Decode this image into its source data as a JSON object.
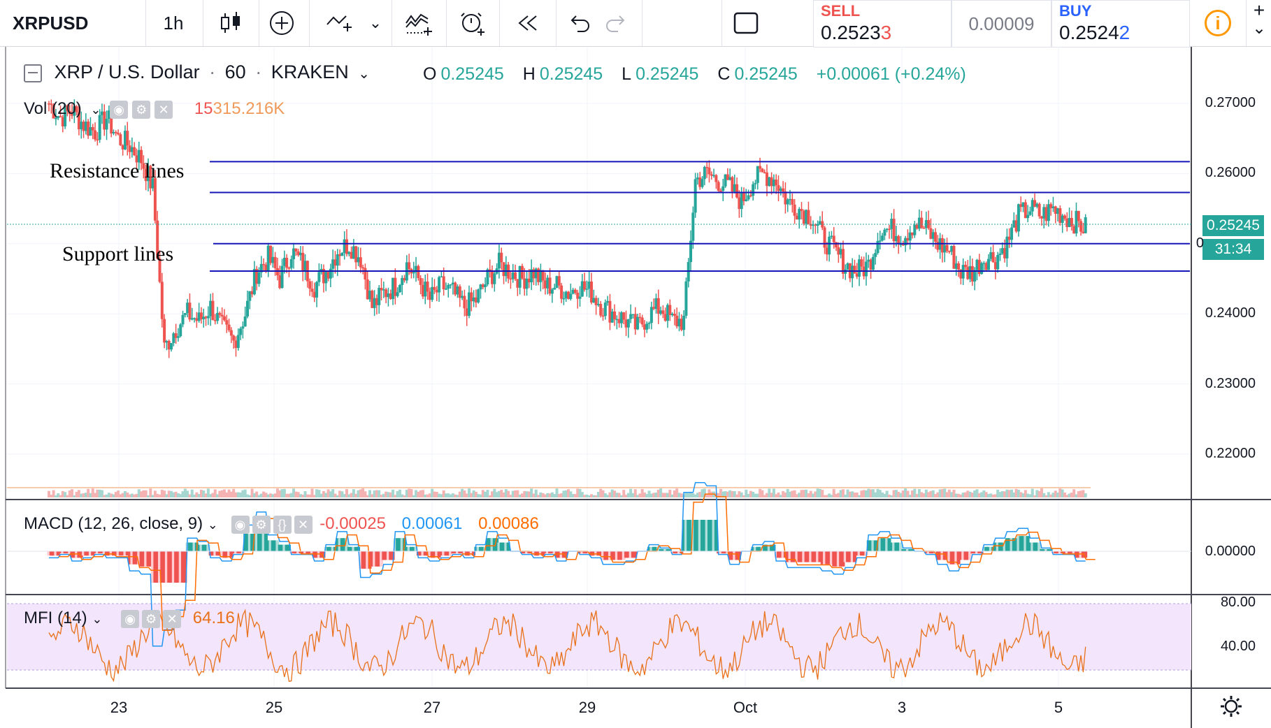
{
  "toolbar": {
    "symbol": "XRPUSD",
    "interval": "1h"
  },
  "trade": {
    "sell_label": "SELL",
    "sell_price_main": "0.2523",
    "sell_price_last": "3",
    "spread": "0.00009",
    "buy_label": "BUY",
    "buy_price_main": "0.2524",
    "buy_price_last": "2",
    "info_icon": "i",
    "plus": "+",
    "chevron": "⌄"
  },
  "main_legend": {
    "title": "XRP / U.S. Dollar",
    "interval": "60",
    "exchange": "KRAKEN",
    "o_label": "O",
    "o": "0.25245",
    "h_label": "H",
    "h": "0.25245",
    "l_label": "L",
    "l": "0.25245",
    "c_label": "C",
    "c": "0.25245",
    "change": "+0.00061 (+0.24%)"
  },
  "vol_legend": {
    "name": "Vol (20)",
    "value_hidden": "15",
    "value": "315.216K"
  },
  "annotations": {
    "resistance": "Resistance lines",
    "support": "Support lines"
  },
  "price_axis": {
    "ticks": [
      "0.27000",
      "0.26000",
      "0.25000",
      "0.24000",
      "0.23000",
      "0.22000"
    ],
    "current_price": "0.25245",
    "countdown": "31:34",
    "partial": "0"
  },
  "macd_legend": {
    "name": "MACD (12, 26, close, 9)",
    "hist": "-0.00025",
    "macd": "0.00061",
    "signal": "0.00086",
    "zero": "0.00000"
  },
  "mfi_legend": {
    "name": "MFI (14)",
    "value": "64.16",
    "tick80": "80.00",
    "tick40": "40.00"
  },
  "time_axis": {
    "labels": [
      "23",
      "25",
      "27",
      "29",
      "Oct",
      "3",
      "5"
    ]
  },
  "colors": {
    "up": "#26a69a",
    "down": "#ef5350",
    "line": "#1515b8",
    "macd": "#2196f3",
    "signal": "#ff6d00",
    "mfi_bg": "#f3e5fb",
    "mfi_line": "#e8711a"
  },
  "chart_data": {
    "type": "candlestick",
    "levels": {
      "resistance": [
        0.2617,
        0.2573
      ],
      "support": [
        0.25,
        0.2461
      ]
    },
    "ylim": [
      0.214,
      0.279
    ],
    "close_series": [
      0.27,
      0.268,
      0.269,
      0.267,
      0.266,
      0.268,
      0.265,
      0.264,
      0.262,
      0.258,
      0.235,
      0.238,
      0.24,
      0.239,
      0.241,
      0.238,
      0.236,
      0.24,
      0.246,
      0.248,
      0.245,
      0.249,
      0.247,
      0.244,
      0.246,
      0.249,
      0.25,
      0.248,
      0.241,
      0.243,
      0.244,
      0.247,
      0.245,
      0.242,
      0.244,
      0.243,
      0.241,
      0.242,
      0.245,
      0.247,
      0.246,
      0.245,
      0.246,
      0.244,
      0.244,
      0.243,
      0.244,
      0.243,
      0.241,
      0.24,
      0.239,
      0.238,
      0.24,
      0.241,
      0.239,
      0.239,
      0.259,
      0.26,
      0.259,
      0.258,
      0.256,
      0.259,
      0.26,
      0.259,
      0.256,
      0.255,
      0.254,
      0.251,
      0.249,
      0.247,
      0.246,
      0.247,
      0.252,
      0.252,
      0.251,
      0.253,
      0.252,
      0.25,
      0.249,
      0.246,
      0.246,
      0.248,
      0.248,
      0.25,
      0.254,
      0.255,
      0.254,
      0.255,
      0.254,
      0.253,
      0.252
    ]
  }
}
